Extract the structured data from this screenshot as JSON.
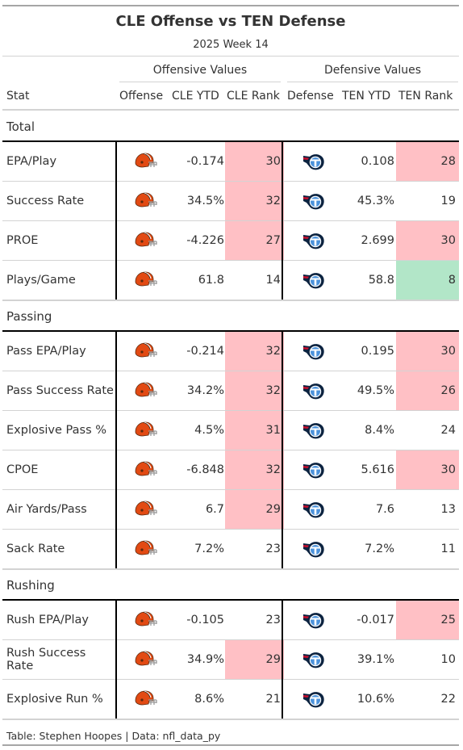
{
  "title": "CLE Offense vs TEN Defense",
  "subtitle": "2025 Week 14",
  "spanners": {
    "offense": "Offensive Values",
    "defense": "Defensive Values"
  },
  "columns": {
    "stat": "Stat",
    "offense": "Offense",
    "cle_ytd": "CLE YTD",
    "cle_rank": "CLE Rank",
    "defense": "Defense",
    "ten_ytd": "TEN YTD",
    "ten_rank": "TEN Rank"
  },
  "colors": {
    "bad_rank": "#ffc0c5",
    "good_rank": "#b2e6c8",
    "browns_orange": "#e24a13",
    "titans_navy": "#0c2340",
    "titans_blue": "#4b92db"
  },
  "groups": [
    {
      "label": "Total",
      "rows": [
        {
          "stat": "EPA/Play",
          "off_logo": "browns-helmet-icon",
          "cle_ytd": "-0.174",
          "cle_rank": "30",
          "cle_rank_tier": "bad",
          "def_logo": "titans-logo-icon",
          "ten_ytd": "0.108",
          "ten_rank": "28",
          "ten_rank_tier": "bad"
        },
        {
          "stat": "Success Rate",
          "off_logo": "browns-helmet-icon",
          "cle_ytd": "34.5%",
          "cle_rank": "32",
          "cle_rank_tier": "bad",
          "def_logo": "titans-logo-icon",
          "ten_ytd": "45.3%",
          "ten_rank": "19",
          "ten_rank_tier": "none"
        },
        {
          "stat": "PROE",
          "off_logo": "browns-helmet-icon",
          "cle_ytd": "-4.226",
          "cle_rank": "27",
          "cle_rank_tier": "bad",
          "def_logo": "titans-logo-icon",
          "ten_ytd": "2.699",
          "ten_rank": "30",
          "ten_rank_tier": "bad"
        },
        {
          "stat": "Plays/Game",
          "off_logo": "browns-helmet-icon",
          "cle_ytd": "61.8",
          "cle_rank": "14",
          "cle_rank_tier": "none",
          "def_logo": "titans-logo-icon",
          "ten_ytd": "58.8",
          "ten_rank": "8",
          "ten_rank_tier": "good"
        }
      ]
    },
    {
      "label": "Passing",
      "rows": [
        {
          "stat": "Pass EPA/Play",
          "off_logo": "browns-helmet-icon",
          "cle_ytd": "-0.214",
          "cle_rank": "32",
          "cle_rank_tier": "bad",
          "def_logo": "titans-logo-icon",
          "ten_ytd": "0.195",
          "ten_rank": "30",
          "ten_rank_tier": "bad"
        },
        {
          "stat": "Pass Success Rate",
          "off_logo": "browns-helmet-icon",
          "cle_ytd": "34.2%",
          "cle_rank": "32",
          "cle_rank_tier": "bad",
          "def_logo": "titans-logo-icon",
          "ten_ytd": "49.5%",
          "ten_rank": "26",
          "ten_rank_tier": "bad"
        },
        {
          "stat": "Explosive Pass %",
          "off_logo": "browns-helmet-icon",
          "cle_ytd": "4.5%",
          "cle_rank": "31",
          "cle_rank_tier": "bad",
          "def_logo": "titans-logo-icon",
          "ten_ytd": "8.4%",
          "ten_rank": "24",
          "ten_rank_tier": "none"
        },
        {
          "stat": "CPOE",
          "off_logo": "browns-helmet-icon",
          "cle_ytd": "-6.848",
          "cle_rank": "32",
          "cle_rank_tier": "bad",
          "def_logo": "titans-logo-icon",
          "ten_ytd": "5.616",
          "ten_rank": "30",
          "ten_rank_tier": "bad"
        },
        {
          "stat": "Air Yards/Pass",
          "off_logo": "browns-helmet-icon",
          "cle_ytd": "6.7",
          "cle_rank": "29",
          "cle_rank_tier": "bad",
          "def_logo": "titans-logo-icon",
          "ten_ytd": "7.6",
          "ten_rank": "13",
          "ten_rank_tier": "none"
        },
        {
          "stat": "Sack Rate",
          "off_logo": "browns-helmet-icon",
          "cle_ytd": "7.2%",
          "cle_rank": "23",
          "cle_rank_tier": "none",
          "def_logo": "titans-logo-icon",
          "ten_ytd": "7.2%",
          "ten_rank": "11",
          "ten_rank_tier": "none"
        }
      ]
    },
    {
      "label": "Rushing",
      "rows": [
        {
          "stat": "Rush EPA/Play",
          "off_logo": "browns-helmet-icon",
          "cle_ytd": "-0.105",
          "cle_rank": "23",
          "cle_rank_tier": "none",
          "def_logo": "titans-logo-icon",
          "ten_ytd": "-0.017",
          "ten_rank": "25",
          "ten_rank_tier": "bad"
        },
        {
          "stat": "Rush Success Rate",
          "off_logo": "browns-helmet-icon",
          "cle_ytd": "34.9%",
          "cle_rank": "29",
          "cle_rank_tier": "bad",
          "def_logo": "titans-logo-icon",
          "ten_ytd": "39.1%",
          "ten_rank": "10",
          "ten_rank_tier": "none"
        },
        {
          "stat": "Explosive Run %",
          "off_logo": "browns-helmet-icon",
          "cle_ytd": "8.6%",
          "cle_rank": "21",
          "cle_rank_tier": "none",
          "def_logo": "titans-logo-icon",
          "ten_ytd": "10.6%",
          "ten_rank": "22",
          "ten_rank_tier": "none"
        }
      ]
    }
  ],
  "footer": "Table: Stephen Hoopes | Data: nfl_data_py"
}
